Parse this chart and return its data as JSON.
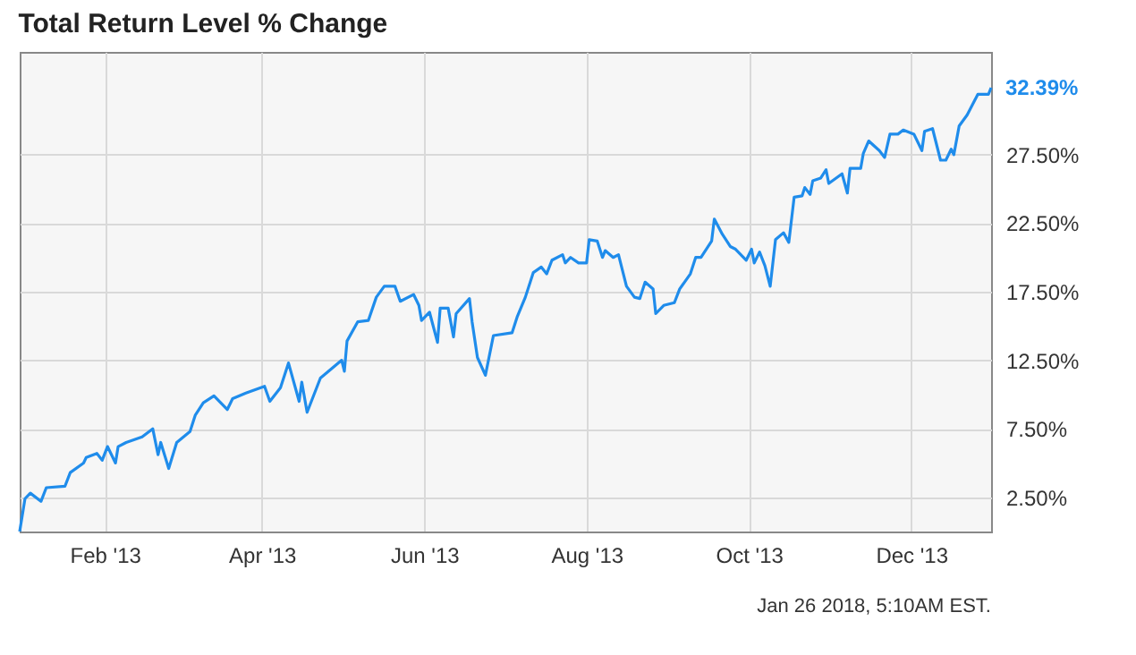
{
  "chart_data": {
    "type": "line",
    "title": "Total Return Level % Change",
    "x": [
      "2012-12-31",
      "2013-01-02",
      "2013-01-04",
      "2013-01-08",
      "2013-01-10",
      "2013-01-17",
      "2013-01-19",
      "2013-01-24",
      "2013-01-25",
      "2013-01-29",
      "2013-01-31",
      "2013-02-02",
      "2013-02-05",
      "2013-02-06",
      "2013-02-09",
      "2013-02-15",
      "2013-02-19",
      "2013-02-21",
      "2013-02-22",
      "2013-02-25",
      "2013-02-28",
      "2013-03-05",
      "2013-03-07",
      "2013-03-10",
      "2013-03-14",
      "2013-03-19",
      "2013-03-21",
      "2013-03-26",
      "2013-04-02",
      "2013-04-04",
      "2013-04-08",
      "2013-04-11",
      "2013-04-15",
      "2013-04-16",
      "2013-04-18",
      "2013-04-23",
      "2013-05-01",
      "2013-05-02",
      "2013-05-03",
      "2013-05-07",
      "2013-05-11",
      "2013-05-14",
      "2013-05-17",
      "2013-05-21",
      "2013-05-23",
      "2013-05-28",
      "2013-05-30",
      "2013-05-31",
      "2013-06-03",
      "2013-06-06",
      "2013-06-07",
      "2013-06-10",
      "2013-06-12",
      "2013-06-13",
      "2013-06-18",
      "2013-06-19",
      "2013-06-21",
      "2013-06-24",
      "2013-06-27",
      "2013-07-04",
      "2013-07-06",
      "2013-07-09",
      "2013-07-12",
      "2013-07-15",
      "2013-07-17",
      "2013-07-19",
      "2013-07-23",
      "2013-07-24",
      "2013-07-26",
      "2013-07-29",
      "2013-08-01",
      "2013-08-02",
      "2013-08-05",
      "2013-08-07",
      "2013-08-08",
      "2013-08-11",
      "2013-08-13",
      "2013-08-16",
      "2013-08-19",
      "2013-08-21",
      "2013-08-23",
      "2013-08-26",
      "2013-08-27",
      "2013-08-30",
      "2013-09-03",
      "2013-09-05",
      "2013-09-09",
      "2013-09-11",
      "2013-09-13",
      "2013-09-17",
      "2013-09-18",
      "2013-09-21",
      "2013-09-24",
      "2013-09-26",
      "2013-09-30",
      "2013-10-02",
      "2013-10-03",
      "2013-10-05",
      "2013-10-07",
      "2013-10-09",
      "2013-10-11",
      "2013-10-14",
      "2013-10-16",
      "2013-10-18",
      "2013-10-21",
      "2013-10-22",
      "2013-10-24",
      "2013-10-25",
      "2013-10-28",
      "2013-10-30",
      "2013-10-31",
      "2013-11-05",
      "2013-11-07",
      "2013-11-08",
      "2013-11-12",
      "2013-11-13",
      "2013-11-15",
      "2013-11-19",
      "2013-11-21",
      "2013-11-23",
      "2013-11-26",
      "2013-11-28",
      "2013-12-02",
      "2013-12-05",
      "2013-12-06",
      "2013-12-09",
      "2013-12-12",
      "2013-12-14",
      "2013-12-16",
      "2013-12-17",
      "2013-12-19",
      "2013-12-22",
      "2013-12-26",
      "2013-12-30",
      "2013-12-31"
    ],
    "series": [
      {
        "color": "#1f8ceb",
        "values": [
          0,
          2.4,
          2.8,
          2.2,
          3.2,
          3.3,
          4.3,
          5.0,
          5.4,
          5.7,
          5.2,
          6.2,
          5.0,
          6.2,
          6.5,
          6.9,
          7.5,
          5.6,
          6.5,
          4.6,
          6.5,
          7.3,
          8.5,
          9.4,
          9.9,
          8.9,
          9.7,
          10.1,
          10.6,
          9.5,
          10.5,
          12.3,
          9.5,
          10.9,
          8.7,
          11.2,
          12.5,
          11.7,
          13.9,
          15.3,
          15.4,
          17.1,
          17.9,
          17.9,
          16.8,
          17.3,
          16.5,
          15.4,
          16.0,
          13.8,
          16.3,
          16.3,
          14.2,
          15.9,
          17.0,
          15.3,
          12.7,
          11.4,
          14.3,
          14.5,
          15.7,
          17.1,
          18.9,
          19.3,
          18.8,
          19.8,
          20.2,
          19.6,
          20.0,
          19.6,
          19.6,
          21.3,
          21.2,
          20.0,
          20.5,
          20.0,
          20.2,
          17.9,
          17.1,
          17.0,
          18.2,
          17.7,
          15.9,
          16.5,
          16.7,
          17.7,
          18.8,
          20.0,
          20.0,
          21.2,
          22.8,
          21.7,
          20.8,
          20.6,
          19.8,
          20.6,
          19.6,
          20.4,
          19.4,
          17.9,
          21.3,
          21.8,
          21.1,
          24.4,
          24.5,
          25.1,
          24.6,
          25.6,
          25.8,
          26.4,
          25.4,
          26.1,
          24.7,
          26.5,
          26.5,
          27.6,
          28.5,
          27.8,
          27.3,
          29.0,
          29.0,
          29.3,
          29.0,
          27.8,
          29.2,
          29.4,
          27.1,
          27.1,
          27.9,
          27.5,
          29.6,
          30.4,
          31.9,
          31.9,
          32.39
        ]
      }
    ],
    "xlim": [
      "2012-12-31",
      "2013-12-31"
    ],
    "xticks": [
      {
        "value": "2013-02-01",
        "label": "Feb '13"
      },
      {
        "value": "2013-04-01",
        "label": "Apr '13"
      },
      {
        "value": "2013-06-01",
        "label": "Jun '13"
      },
      {
        "value": "2013-08-01",
        "label": "Aug '13"
      },
      {
        "value": "2013-10-01",
        "label": "Oct '13"
      },
      {
        "value": "2013-12-01",
        "label": "Dec '13"
      }
    ],
    "ylim": [
      0,
      35
    ],
    "yticks": [
      {
        "value": 2.5,
        "label": "2.50%"
      },
      {
        "value": 7.5,
        "label": "7.50%"
      },
      {
        "value": 12.5,
        "label": "12.50%"
      },
      {
        "value": 17.5,
        "label": "17.50%"
      },
      {
        "value": 22.5,
        "label": "22.50%"
      },
      {
        "value": 27.5,
        "label": "27.50%"
      }
    ],
    "annotations": [
      {
        "text": "32.39%",
        "x": "2013-12-31",
        "y": 32.39
      },
      "Jan 26 2018, 5:10AM EST."
    ],
    "grid": true,
    "marker": "none",
    "line_style": "solid"
  }
}
